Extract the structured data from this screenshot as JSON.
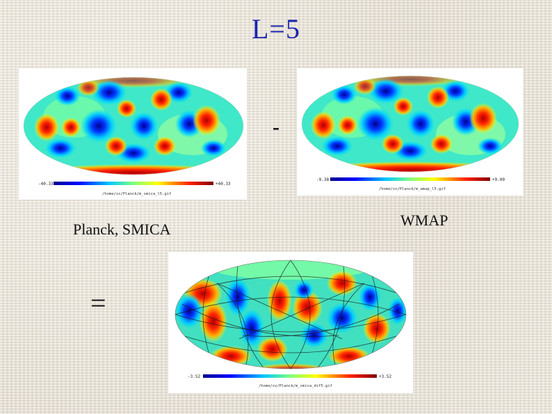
{
  "title": "L=5",
  "operators": {
    "minus": "-",
    "equals": "="
  },
  "labels": {
    "left": "Planck, SMICA",
    "right": "WMAP"
  },
  "colormap": [
    "#00008f",
    "#0000ff",
    "#00a8ff",
    "#3fffbf",
    "#ffff00",
    "#ff7a00",
    "#ff0000",
    "#800000"
  ],
  "maps": {
    "planck": {
      "cb_min": "-40.33",
      "cb_max": "+40.33",
      "filename": "/home/xx/Planck/m_smica_l5.gif"
    },
    "wmap": {
      "cb_min": "-9.38",
      "cb_max": "+9.00",
      "filename": "/home/xx/Planck/m_wmap_l5.gif"
    },
    "difference": {
      "cb_min": "-3.52",
      "cb_max": "+3.52",
      "filename": "/home/xx/Planck/m_smica_dif5.gif"
    }
  }
}
